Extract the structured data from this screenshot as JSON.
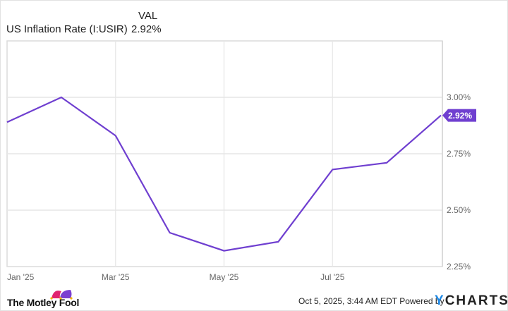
{
  "header": {
    "column_label": "VAL",
    "series_name": "US Inflation Rate (I:USIR)",
    "series_value": "2.92%"
  },
  "chart_data": {
    "type": "line",
    "title": "US Inflation Rate (I:USIR)",
    "xlabel": "",
    "ylabel": "",
    "x": [
      "Jan '25",
      "Feb '25",
      "Mar '25",
      "Apr '25",
      "May '25",
      "Jun '25",
      "Jul '25",
      "Aug '25",
      "Sep '25"
    ],
    "series": [
      {
        "name": "US Inflation Rate (I:USIR)",
        "color": "#6f3fd0",
        "values": [
          2.89,
          3.0,
          2.83,
          2.4,
          2.32,
          2.36,
          2.68,
          2.71,
          2.92
        ]
      }
    ],
    "x_tick_labels": [
      "Jan '25",
      "Mar '25",
      "May '25",
      "Jul '25"
    ],
    "y_tick_labels": [
      "3.00%",
      "2.75%",
      "2.50%",
      "2.25%"
    ],
    "ylim": [
      2.25,
      3.25
    ],
    "grid": true,
    "last_value_label": "2.92%",
    "axis_side": "right"
  },
  "footer": {
    "brand_left": "The Motley Fool",
    "timestamp": "Oct 5, 2025, 3:44 AM EDT",
    "powered_by": "Powered by",
    "brand_right_y": "Y",
    "brand_right_rest": "CHARTS"
  },
  "colors": {
    "line": "#6f3fd0",
    "badge": "#6f3fd0",
    "grid": "#e6e6e6",
    "ycharts_blue": "#1e88e5"
  }
}
